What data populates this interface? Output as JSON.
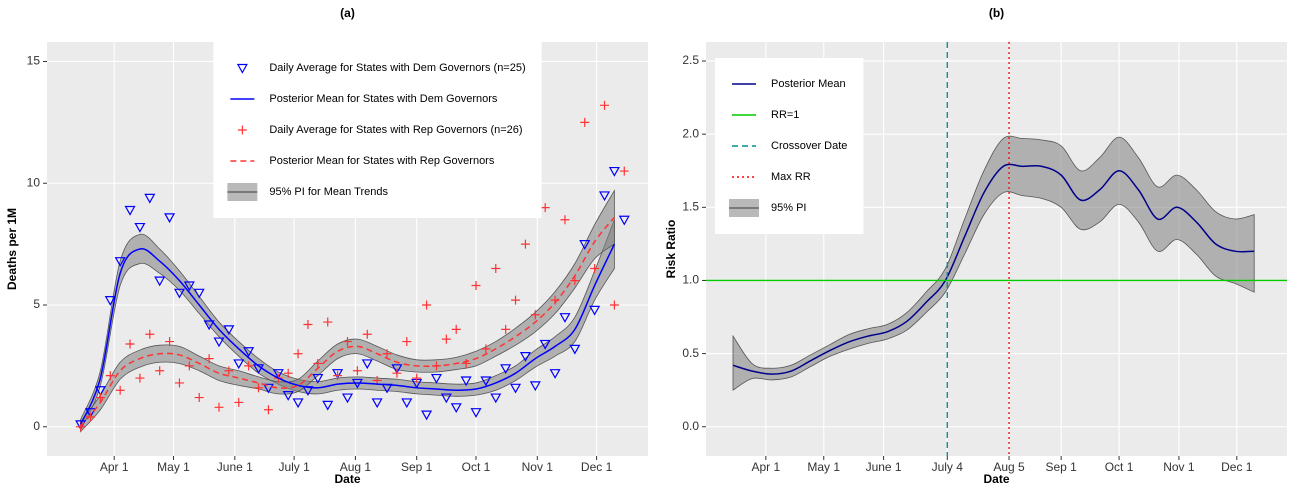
{
  "chart_data": [
    {
      "type": "line",
      "title": "(a)",
      "xlabel": "Date",
      "ylabel": "Deaths per 1M",
      "xlim": [
        58,
        362
      ],
      "ylim": [
        -1.2,
        15.8
      ],
      "grid": true,
      "legend": "top",
      "xticks": [
        {
          "value": 92,
          "label": "Apr 1"
        },
        {
          "value": 122,
          "label": "May 1"
        },
        {
          "value": 153,
          "label": "June 1"
        },
        {
          "value": 183,
          "label": "July 1"
        },
        {
          "value": 214,
          "label": "Aug 1"
        },
        {
          "value": 245,
          "label": "Sep 1"
        },
        {
          "value": 275,
          "label": "Oct 1"
        },
        {
          "value": 306,
          "label": "Nov 1"
        },
        {
          "value": 336,
          "label": "Dec 1"
        }
      ],
      "yticks": [
        0,
        5,
        10,
        15
      ],
      "series": [
        {
          "name": "Daily Average for States with Dem Governors (n=25)",
          "kind": "scatter",
          "marker": "triangle",
          "color": "#0000ff",
          "x": [
            75,
            80,
            85,
            90,
            95,
            100,
            105,
            110,
            115,
            120,
            125,
            130,
            135,
            140,
            145,
            150,
            155,
            160,
            165,
            170,
            175,
            180,
            185,
            190,
            195,
            200,
            205,
            210,
            215,
            220,
            225,
            230,
            235,
            240,
            245,
            250,
            255,
            260,
            265,
            270,
            275,
            280,
            285,
            290,
            295,
            300,
            305,
            310,
            315,
            320,
            325,
            330,
            335,
            340,
            345,
            350
          ],
          "values": [
            0.1,
            0.6,
            1.5,
            5.2,
            6.8,
            8.9,
            8.2,
            9.4,
            6.0,
            8.6,
            5.5,
            5.8,
            5.5,
            4.2,
            3.5,
            4.0,
            2.6,
            3.1,
            2.4,
            1.6,
            2.2,
            1.3,
            1.0,
            1.5,
            2.0,
            0.9,
            2.2,
            1.2,
            1.8,
            2.6,
            1.0,
            1.6,
            2.4,
            1.0,
            1.8,
            0.5,
            2.0,
            1.2,
            0.8,
            1.9,
            0.6,
            1.9,
            1.2,
            2.4,
            1.6,
            2.9,
            1.7,
            3.4,
            2.2,
            4.5,
            3.2,
            7.5,
            4.8,
            9.5,
            10.5,
            8.5
          ]
        },
        {
          "name": "Posterior Mean for States with Dem Governors",
          "kind": "line",
          "dash": "solid",
          "color": "#0000ff",
          "x": [
            75,
            85,
            95,
            105,
            115,
            125,
            135,
            145,
            155,
            165,
            175,
            185,
            195,
            205,
            215,
            225,
            235,
            245,
            255,
            265,
            275,
            285,
            295,
            305,
            315,
            325,
            335,
            345
          ],
          "values": [
            0.1,
            2,
            6.3,
            7.3,
            6.8,
            6.0,
            5.0,
            4.0,
            3.2,
            2.5,
            2.0,
            1.7,
            1.6,
            1.75,
            1.8,
            1.75,
            1.7,
            1.6,
            1.55,
            1.5,
            1.55,
            1.8,
            2.2,
            2.8,
            3.3,
            4.0,
            5.8,
            7.5
          ]
        },
        {
          "name": "Daily Average for States with Rep Governors (n=26)",
          "kind": "scatter",
          "marker": "plus",
          "color": "#ff3333",
          "x": [
            75,
            80,
            85,
            90,
            95,
            100,
            105,
            110,
            115,
            120,
            125,
            130,
            135,
            140,
            145,
            150,
            155,
            160,
            165,
            170,
            175,
            180,
            185,
            190,
            195,
            200,
            205,
            210,
            215,
            220,
            225,
            230,
            235,
            240,
            245,
            250,
            255,
            260,
            265,
            270,
            275,
            280,
            285,
            290,
            295,
            300,
            305,
            310,
            315,
            320,
            325,
            330,
            335,
            340,
            345,
            350
          ],
          "values": [
            0,
            0.4,
            1.2,
            2.1,
            1.5,
            3.4,
            2.0,
            3.8,
            2.3,
            3.5,
            1.8,
            2.5,
            1.2,
            2.8,
            0.8,
            2.3,
            1.0,
            2.5,
            1.6,
            0.7,
            2.0,
            2.2,
            3.0,
            4.2,
            2.6,
            4.3,
            2.1,
            3.5,
            2.3,
            3.8,
            1.9,
            3.0,
            2.2,
            3.5,
            2.0,
            5.0,
            2.5,
            3.6,
            4.0,
            2.6,
            5.8,
            3.2,
            6.5,
            4.0,
            5.2,
            7.5,
            4.6,
            9.0,
            5.2,
            8.5,
            6.0,
            12.5,
            6.5,
            13.2,
            5.0,
            10.5
          ]
        },
        {
          "name": "Posterior Mean for States with Rep Governors",
          "kind": "line",
          "dash": "dashed",
          "color": "#ff3333",
          "x": [
            75,
            85,
            95,
            105,
            115,
            125,
            135,
            145,
            155,
            165,
            175,
            185,
            195,
            205,
            215,
            225,
            235,
            245,
            255,
            265,
            275,
            285,
            295,
            305,
            315,
            325,
            335,
            345
          ],
          "values": [
            0,
            1,
            2.3,
            2.8,
            3.0,
            2.95,
            2.6,
            2.2,
            2.0,
            1.8,
            1.6,
            1.7,
            2.4,
            3.1,
            3.3,
            3.0,
            2.65,
            2.5,
            2.5,
            2.6,
            2.8,
            3.2,
            3.7,
            4.3,
            5.1,
            6.2,
            7.6,
            8.6
          ]
        },
        {
          "name": "95% PI for Mean Trends",
          "kind": "band",
          "color": "#808080",
          "bands": [
            {
              "x": [
                75,
                85,
                95,
                105,
                115,
                125,
                135,
                145,
                155,
                165,
                175,
                185,
                195,
                205,
                215,
                225,
                235,
                245,
                255,
                265,
                275,
                285,
                295,
                305,
                315,
                325,
                335,
                345
              ],
              "lower": [
                -0.1,
                1.7,
                5.8,
                6.7,
                6.3,
                5.6,
                4.65,
                3.7,
                2.9,
                2.2,
                1.75,
                1.45,
                1.35,
                1.5,
                1.55,
                1.5,
                1.45,
                1.35,
                1.3,
                1.25,
                1.3,
                1.5,
                1.9,
                2.45,
                2.9,
                3.5,
                5.2,
                6.5
              ],
              "upper": [
                0.3,
                2.3,
                6.8,
                7.9,
                7.3,
                6.4,
                5.35,
                4.3,
                3.5,
                2.8,
                2.25,
                1.95,
                1.85,
                2.0,
                2.05,
                2.0,
                1.95,
                1.85,
                1.8,
                1.75,
                1.8,
                2.1,
                2.5,
                3.15,
                3.7,
                4.5,
                6.4,
                8.5
              ]
            },
            {
              "x": [
                75,
                85,
                95,
                105,
                115,
                125,
                135,
                145,
                155,
                165,
                175,
                185,
                195,
                205,
                215,
                225,
                235,
                245,
                255,
                265,
                275,
                285,
                295,
                305,
                315,
                325,
                335,
                345
              ],
              "lower": [
                -0.2,
                0.7,
                1.95,
                2.45,
                2.65,
                2.6,
                2.3,
                1.9,
                1.7,
                1.55,
                1.35,
                1.45,
                2.1,
                2.8,
                3.0,
                2.7,
                2.35,
                2.25,
                2.25,
                2.35,
                2.5,
                2.9,
                3.35,
                3.9,
                4.65,
                5.7,
                6.9,
                7.5
              ],
              "upper": [
                0.2,
                1.3,
                2.65,
                3.15,
                3.35,
                3.3,
                2.9,
                2.5,
                2.3,
                2.05,
                1.85,
                1.95,
                2.7,
                3.4,
                3.6,
                3.3,
                2.95,
                2.75,
                2.75,
                2.85,
                3.1,
                3.5,
                4.05,
                4.7,
                5.55,
                6.7,
                8.3,
                9.7
              ]
            }
          ]
        }
      ]
    },
    {
      "type": "line",
      "title": "(b)",
      "xlabel": "Date",
      "ylabel": "Risk Ratio",
      "xlim": [
        61,
        362
      ],
      "ylim": [
        -0.2,
        2.63
      ],
      "grid": true,
      "legend": "top-left",
      "xticks": [
        {
          "value": 92,
          "label": "Apr 1"
        },
        {
          "value": 122,
          "label": "May 1"
        },
        {
          "value": 153,
          "label": "June 1"
        },
        {
          "value": 186,
          "label": "July 4"
        },
        {
          "value": 218,
          "label": "Aug 5"
        },
        {
          "value": 245,
          "label": "Sep 1"
        },
        {
          "value": 275,
          "label": "Oct 1"
        },
        {
          "value": 306,
          "label": "Nov 1"
        },
        {
          "value": 336,
          "label": "Dec 1"
        }
      ],
      "yticks": [
        {
          "value": 0,
          "label": "0.0"
        },
        {
          "value": 0.5,
          "label": "0.5"
        },
        {
          "value": 1,
          "label": "1.0"
        },
        {
          "value": 1.5,
          "label": "1.5"
        },
        {
          "value": 2,
          "label": "2.0"
        },
        {
          "value": 2.5,
          "label": "2.5"
        }
      ],
      "series": [
        {
          "name": "Posterior Mean",
          "kind": "line",
          "dash": "solid",
          "color": "#00008b",
          "x": [
            75,
            85,
            95,
            105,
            115,
            125,
            135,
            145,
            155,
            165,
            175,
            185,
            195,
            205,
            215,
            225,
            235,
            245,
            255,
            265,
            275,
            285,
            295,
            305,
            315,
            325,
            335,
            345
          ],
          "values": [
            0.42,
            0.38,
            0.36,
            0.38,
            0.45,
            0.52,
            0.58,
            0.62,
            0.65,
            0.72,
            0.85,
            1.0,
            1.3,
            1.6,
            1.78,
            1.78,
            1.78,
            1.72,
            1.55,
            1.62,
            1.75,
            1.62,
            1.42,
            1.5,
            1.4,
            1.25,
            1.2,
            1.2
          ]
        },
        {
          "name": "RR=1",
          "kind": "hline",
          "dash": "solid",
          "color": "#00cc00",
          "value": 1
        },
        {
          "name": "Crossover Date",
          "kind": "vline",
          "dash": "dashed",
          "color": "#008b8b",
          "value": 186
        },
        {
          "name": "Max RR",
          "kind": "vline",
          "dash": "dotted",
          "color": "#ff0000",
          "value": 218
        },
        {
          "name": "95% PI",
          "kind": "band",
          "color": "#808080",
          "bands": [
            {
              "x": [
                75,
                85,
                95,
                105,
                115,
                125,
                135,
                145,
                155,
                165,
                175,
                185,
                195,
                205,
                215,
                225,
                235,
                245,
                255,
                265,
                275,
                285,
                295,
                305,
                315,
                325,
                335,
                345
              ],
              "lower": [
                0.25,
                0.33,
                0.32,
                0.34,
                0.41,
                0.48,
                0.53,
                0.57,
                0.6,
                0.66,
                0.78,
                0.92,
                1.18,
                1.45,
                1.6,
                1.58,
                1.56,
                1.5,
                1.35,
                1.4,
                1.52,
                1.4,
                1.2,
                1.28,
                1.18,
                1.03,
                0.98,
                0.92
              ],
              "upper": [
                0.62,
                0.43,
                0.4,
                0.42,
                0.49,
                0.56,
                0.63,
                0.67,
                0.7,
                0.78,
                0.92,
                1.08,
                1.42,
                1.75,
                1.97,
                1.97,
                1.96,
                1.92,
                1.75,
                1.84,
                1.98,
                1.84,
                1.64,
                1.72,
                1.62,
                1.47,
                1.42,
                1.45
              ]
            }
          ]
        }
      ]
    }
  ]
}
